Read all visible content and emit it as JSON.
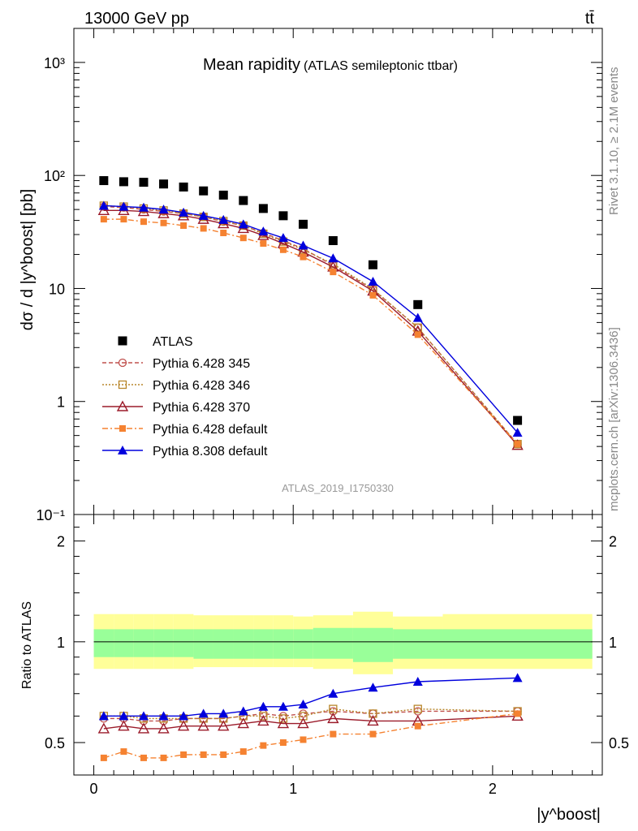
{
  "header": {
    "energy_label": "13000 GeV pp",
    "process_label": "tt̄",
    "title": "Mean rapidity",
    "subtitle": "(ATLAS semileptonic ttbar)",
    "analysis_id": "ATLAS_2019_I1750330",
    "side_label_top": "Rivet 3.1.10, ≥ 2.1M events",
    "side_label_bottom": "mcplots.cern.ch [arXiv:1306.3436]"
  },
  "axes": {
    "main_ylabel": "dσ / d |y^boost| [pb]",
    "ratio_ylabel": "Ratio to ATLAS",
    "xlabel": "|y^boost|",
    "main_yticks": [
      "10⁻¹",
      "1",
      "10",
      "10²",
      "10³"
    ],
    "ratio_yticks": [
      "0.5",
      "1",
      "2"
    ],
    "xticks": [
      "0",
      "1",
      "2"
    ]
  },
  "colors": {
    "atlas": "#000000",
    "py345": "#c0504d",
    "py346": "#b8862b",
    "py370": "#9b1b2a",
    "pydef": "#f58231",
    "py8": "#0000dd",
    "band_outer": "#ffff99",
    "band_inner": "#99ff99"
  },
  "chart_data": {
    "type": "scatter",
    "x_scale": "linear",
    "y_scale": "log",
    "xlim": [
      -0.1,
      2.55
    ],
    "ylim": [
      0.1,
      2000
    ],
    "ratio_ylim": [
      0.4,
      2.4
    ],
    "x": [
      0.05,
      0.15,
      0.25,
      0.35,
      0.45,
      0.55,
      0.65,
      0.75,
      0.85,
      0.95,
      1.05,
      1.2,
      1.4,
      1.625,
      2.125
    ],
    "bin_edges": [
      0.0,
      0.1,
      0.2,
      0.3,
      0.4,
      0.5,
      0.6,
      0.7,
      0.8,
      0.9,
      1.0,
      1.1,
      1.3,
      1.5,
      1.75,
      2.5
    ],
    "series": [
      {
        "name": "ATLAS",
        "key": "atlas",
        "values": [
          90,
          88,
          87,
          84,
          79,
          73,
          67,
          60,
          51,
          44,
          37,
          26.5,
          16.2,
          7.2,
          0.68
        ]
      },
      {
        "name": "Pythia 6.428 345",
        "key": "py345",
        "values": [
          53,
          52,
          50,
          48,
          46,
          43,
          39,
          36,
          31,
          26.5,
          22.5,
          16,
          9.8,
          4.5,
          0.42
        ]
      },
      {
        "name": "Pythia 6.428 346",
        "key": "py346",
        "values": [
          54,
          53,
          51,
          49,
          46,
          43,
          39.5,
          36,
          30.5,
          26,
          22,
          16.5,
          9.9,
          4.5,
          0.42
        ]
      },
      {
        "name": "Pythia 6.428 370",
        "key": "py370",
        "values": [
          49,
          49,
          48,
          46,
          44,
          41,
          37.5,
          34,
          29.5,
          25,
          21,
          15.5,
          9.5,
          4.2,
          0.41
        ]
      },
      {
        "name": "Pythia 6.428 default",
        "key": "pydef",
        "values": [
          41,
          41,
          39,
          38,
          36,
          34,
          31,
          28,
          25,
          22,
          19,
          14,
          8.7,
          3.9,
          0.42
        ]
      },
      {
        "name": "Pythia 8.308 default",
        "key": "py8",
        "values": [
          54,
          53,
          52,
          50,
          47,
          44,
          40.5,
          37,
          32,
          28,
          24,
          18.5,
          11.5,
          5.5,
          0.53
        ]
      }
    ],
    "ratios": {
      "py345": [
        0.59,
        0.59,
        0.58,
        0.58,
        0.59,
        0.59,
        0.59,
        0.6,
        0.61,
        0.6,
        0.61,
        0.62,
        0.61,
        0.62,
        0.62
      ],
      "py346": [
        0.6,
        0.6,
        0.59,
        0.59,
        0.59,
        0.59,
        0.59,
        0.6,
        0.6,
        0.59,
        0.6,
        0.63,
        0.61,
        0.63,
        0.62
      ],
      "py370": [
        0.55,
        0.56,
        0.55,
        0.55,
        0.56,
        0.56,
        0.56,
        0.57,
        0.58,
        0.57,
        0.57,
        0.59,
        0.58,
        0.58,
        0.6
      ],
      "pydef": [
        0.45,
        0.47,
        0.45,
        0.45,
        0.46,
        0.46,
        0.46,
        0.47,
        0.49,
        0.5,
        0.51,
        0.53,
        0.53,
        0.56,
        0.61
      ],
      "py8": [
        0.6,
        0.6,
        0.6,
        0.6,
        0.6,
        0.61,
        0.61,
        0.62,
        0.64,
        0.64,
        0.65,
        0.7,
        0.73,
        0.76,
        0.78
      ]
    },
    "uncertainty_band": {
      "inner": [
        [
          0.9,
          1.09
        ],
        [
          0.9,
          1.09
        ],
        [
          0.9,
          1.09
        ],
        [
          0.9,
          1.09
        ],
        [
          0.9,
          1.09
        ],
        [
          0.89,
          1.09
        ],
        [
          0.89,
          1.09
        ],
        [
          0.89,
          1.09
        ],
        [
          0.89,
          1.09
        ],
        [
          0.89,
          1.09
        ],
        [
          0.89,
          1.09
        ],
        [
          0.89,
          1.1
        ],
        [
          0.87,
          1.1
        ],
        [
          0.89,
          1.09
        ],
        [
          0.89,
          1.09
        ]
      ],
      "outer": [
        [
          0.83,
          1.21
        ],
        [
          0.83,
          1.21
        ],
        [
          0.83,
          1.21
        ],
        [
          0.83,
          1.21
        ],
        [
          0.83,
          1.21
        ],
        [
          0.84,
          1.2
        ],
        [
          0.84,
          1.2
        ],
        [
          0.84,
          1.2
        ],
        [
          0.84,
          1.2
        ],
        [
          0.84,
          1.2
        ],
        [
          0.84,
          1.19
        ],
        [
          0.83,
          1.2
        ],
        [
          0.8,
          1.23
        ],
        [
          0.83,
          1.19
        ],
        [
          0.83,
          1.21
        ]
      ]
    },
    "legend_position": "bottom-left",
    "grid": false
  }
}
